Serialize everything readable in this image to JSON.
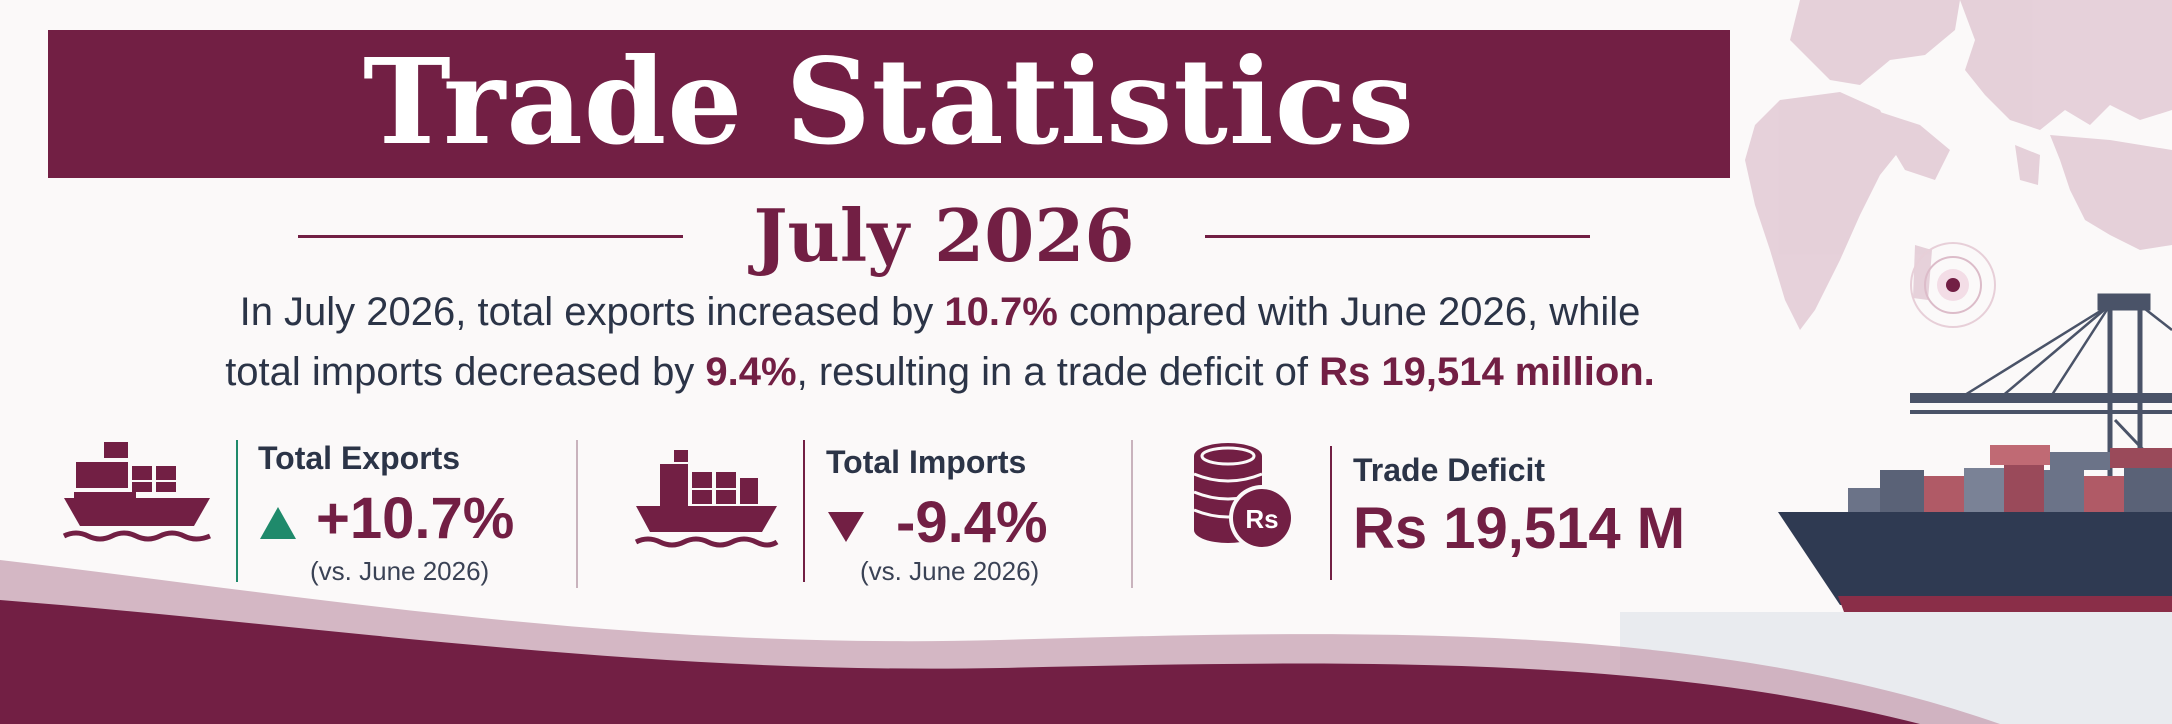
{
  "banner": {
    "title": "Trade Statistics",
    "subtitle": "July 2026"
  },
  "summary": {
    "part1": "In July 2026, total exports increased by ",
    "exports_change": "10.7%",
    "part2": " compared with June 2026, while",
    "part3": "total imports decreased by ",
    "imports_change": "9.4%",
    "part4": ", resulting in a trade deficit of ",
    "deficit": "Rs 19,514 million."
  },
  "stats": {
    "exports": {
      "label": "Total Exports",
      "value": "+10.7%",
      "note": "(vs. June 2026)",
      "trend": "up",
      "icon": "cargo-ship-icon"
    },
    "imports": {
      "label": "Total Imports",
      "value": "-9.4%",
      "note": "(vs. June 2026)",
      "trend": "down",
      "icon": "cargo-ship-icon"
    },
    "deficit": {
      "label": "Trade Deficit",
      "value": "Rs 19,514 M",
      "icon": "coin-stack-icon",
      "badge": "Rs"
    }
  },
  "colors": {
    "brand": "#721f44",
    "up": "#1f8a6b",
    "down": "#721f44",
    "text": "#2b3447"
  }
}
